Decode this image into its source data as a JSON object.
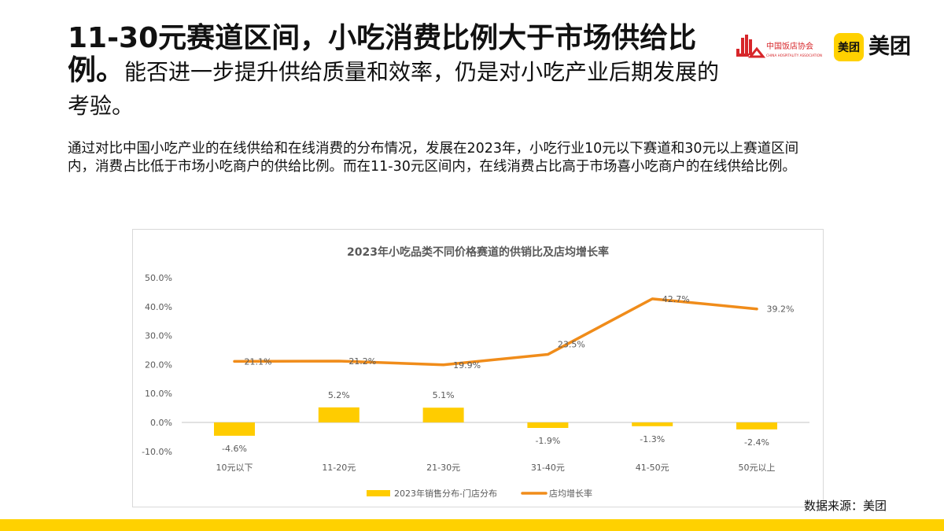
{
  "headline": {
    "bold_part": "11-30元赛道区间，小吃消费比例大于市场供给比例。",
    "light_part": "能否进一步提升供给质量和效率，仍是对小吃产业后期发展的考验。"
  },
  "logos": {
    "association_name": "中国饭店协会",
    "association_subtitle": "CHINA HOSPITALITY ASSOCIATION",
    "meituan_badge": "美团",
    "meituan_wordmark": "美团"
  },
  "description": "通过对比中国小吃产业的在线供给和在线消费的分布情况，发展在2023年，小吃行业10元以下赛道和30元以上赛道区间内，消费占比低于市场小吃商户的供给比例。而在11-30元区间内，在线消费占比高于市场喜小吃商户的在线供给比例。",
  "source": "数据来源：美团",
  "colors": {
    "brand_yellow": "#FFD100",
    "bar_yellow": "#FFCC00",
    "line_orange": "#F08C1A",
    "axis_text": "#595959",
    "zero_line": "#d9d9d9"
  },
  "chart_data": {
    "type": "bar+line",
    "title": "2023年小吃品类不同价格赛道的供销比及店均增长率",
    "categories": [
      "10元以下",
      "11-20元",
      "21-30元",
      "31-40元",
      "41-50元",
      "50元以上"
    ],
    "series": [
      {
        "name": "2023年销售分布-门店分布",
        "type": "bar",
        "values": [
          -4.6,
          5.2,
          5.1,
          -1.9,
          -1.3,
          -2.4
        ],
        "labels": [
          "-4.6%",
          "5.2%",
          "5.1%",
          "-1.9%",
          "-1.3%",
          "-2.4%"
        ]
      },
      {
        "name": "店均增长率",
        "type": "line",
        "values": [
          21.1,
          21.2,
          19.9,
          23.5,
          42.7,
          39.2
        ],
        "labels": [
          "21.1%",
          "21.2%",
          "19.9%",
          "23.5%",
          "42.7%",
          "39.2%"
        ]
      }
    ],
    "yticks": [
      "50.0%",
      "40.0%",
      "30.0%",
      "20.0%",
      "10.0%",
      "0.0%",
      "-10.0%"
    ],
    "ylim": [
      -10,
      50
    ],
    "xlabel": "",
    "ylabel": "",
    "grid": false,
    "legend_position": "bottom"
  }
}
